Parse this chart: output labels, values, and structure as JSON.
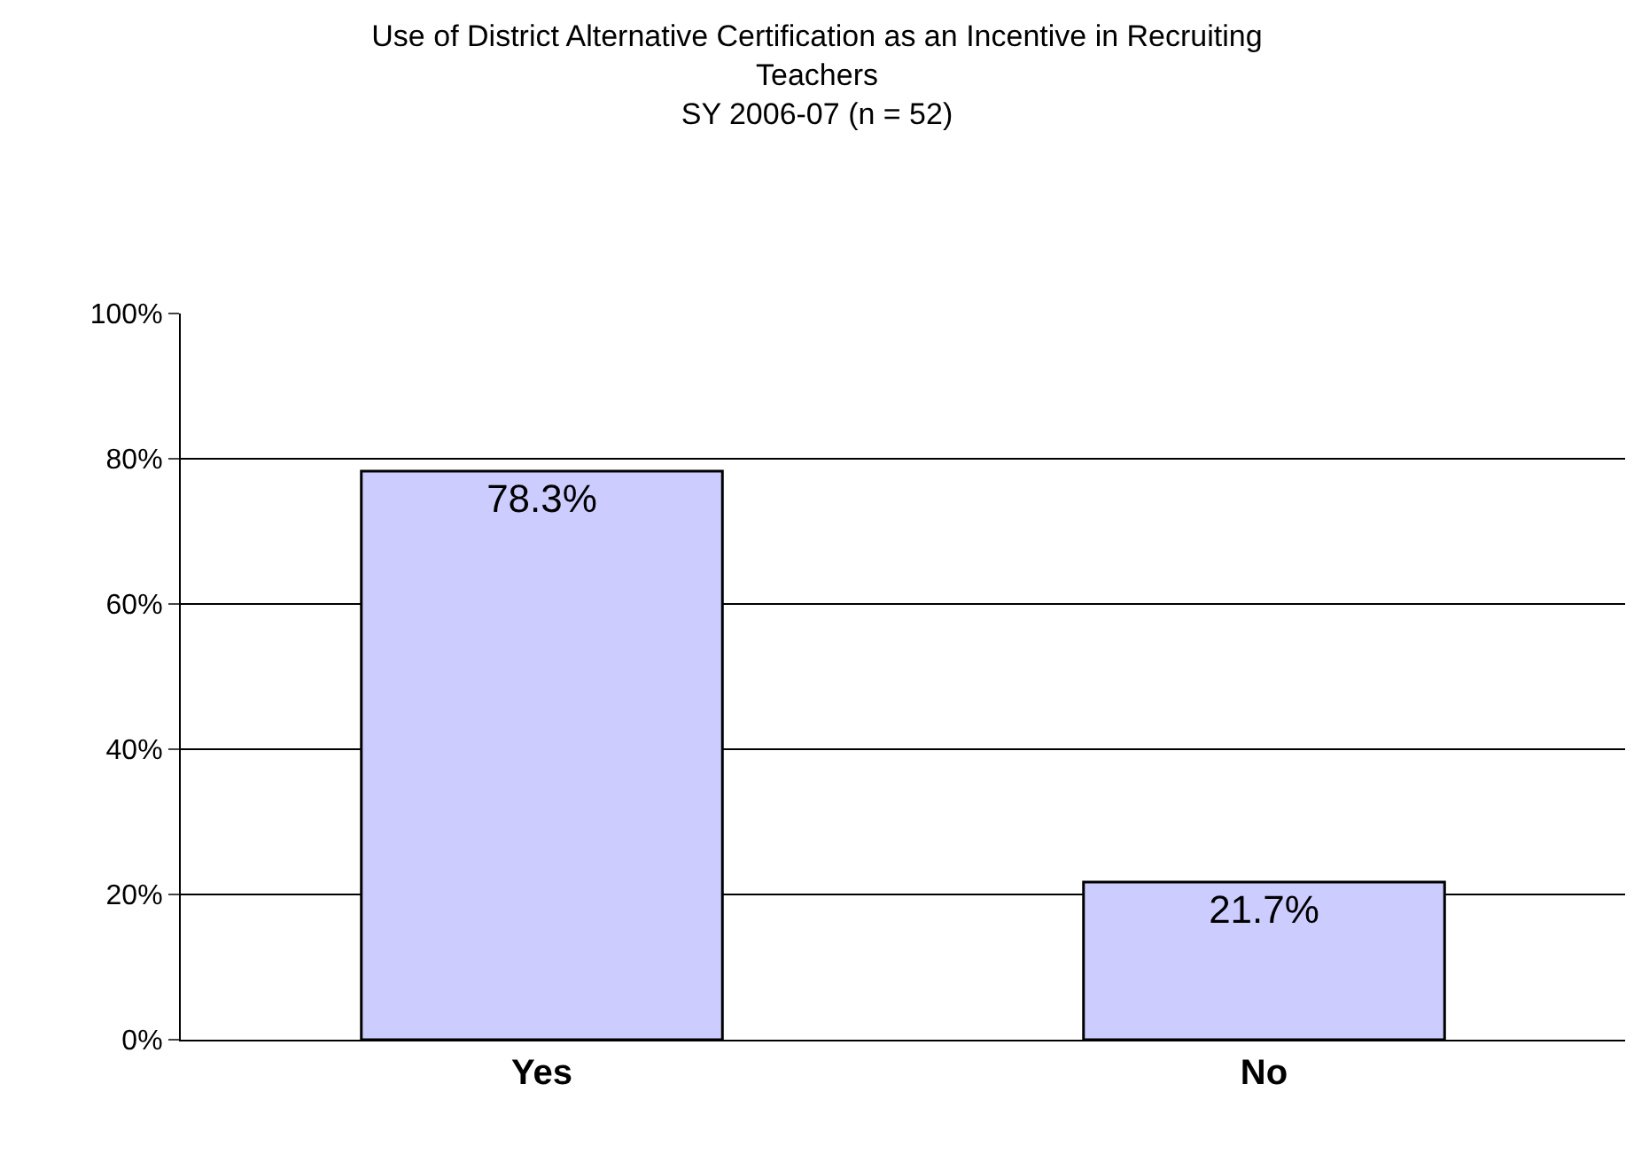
{
  "chart_data": {
    "type": "bar",
    "title": "Use of District Alternative Certification as an Incentive in Recruiting\nTeachers\nSY 2006-07 (n = 52)",
    "categories": [
      "Yes",
      "No"
    ],
    "values": [
      78.3,
      21.7
    ],
    "color": "#ccccff",
    "value_labels": [
      "78.3%",
      "21.7%"
    ],
    "ylim": [
      0,
      100
    ],
    "yticks": [
      {
        "value": 0,
        "label": "0%"
      },
      {
        "value": 20,
        "label": "20%"
      },
      {
        "value": 40,
        "label": "40%"
      },
      {
        "value": 60,
        "label": "60%"
      },
      {
        "value": 80,
        "label": "80%"
      },
      {
        "value": 100,
        "label": "100%"
      }
    ],
    "grid": "y",
    "legend": false
  }
}
